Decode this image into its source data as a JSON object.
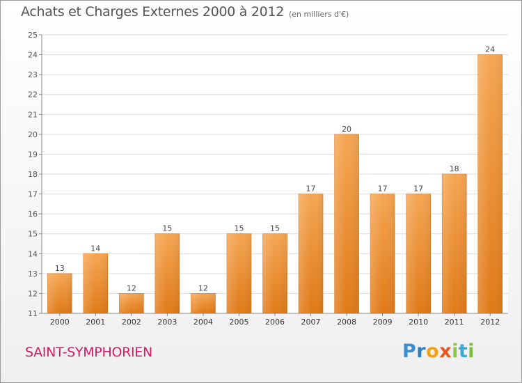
{
  "chart_data": {
    "type": "bar",
    "title": "Achats et Charges Externes 2000 à 2012",
    "subtitle": "(en milliers d'€)",
    "categories": [
      "2000",
      "2001",
      "2002",
      "2003",
      "2004",
      "2005",
      "2006",
      "2007",
      "2008",
      "2009",
      "2010",
      "2011",
      "2012"
    ],
    "values": [
      13,
      14,
      12,
      15,
      12,
      15,
      15,
      17,
      20,
      17,
      17,
      18,
      24
    ],
    "ylim": [
      11,
      25
    ],
    "yticks": [
      11,
      12,
      13,
      14,
      15,
      16,
      17,
      18,
      19,
      20,
      21,
      22,
      23,
      24,
      25
    ],
    "grid": true,
    "bar_color_top": "#f5a653",
    "bar_color_bottom": "#e07a18"
  },
  "footer": {
    "commune": "SAINT-SYMPHORIEN",
    "commune_color": "#d61b65"
  },
  "logo": {
    "letters": [
      {
        "char": "P",
        "color": "#3b8fd1"
      },
      {
        "char": "r",
        "color": "#2d7fc4"
      },
      {
        "char": "o",
        "color": "#f0a21c"
      },
      {
        "char": "x",
        "color": "#e8551f"
      },
      {
        "char": "i",
        "color": "#8cc63e"
      },
      {
        "char": "t",
        "color": "#3da9d8"
      },
      {
        "char": "i",
        "color": "#7cbf38"
      }
    ]
  }
}
